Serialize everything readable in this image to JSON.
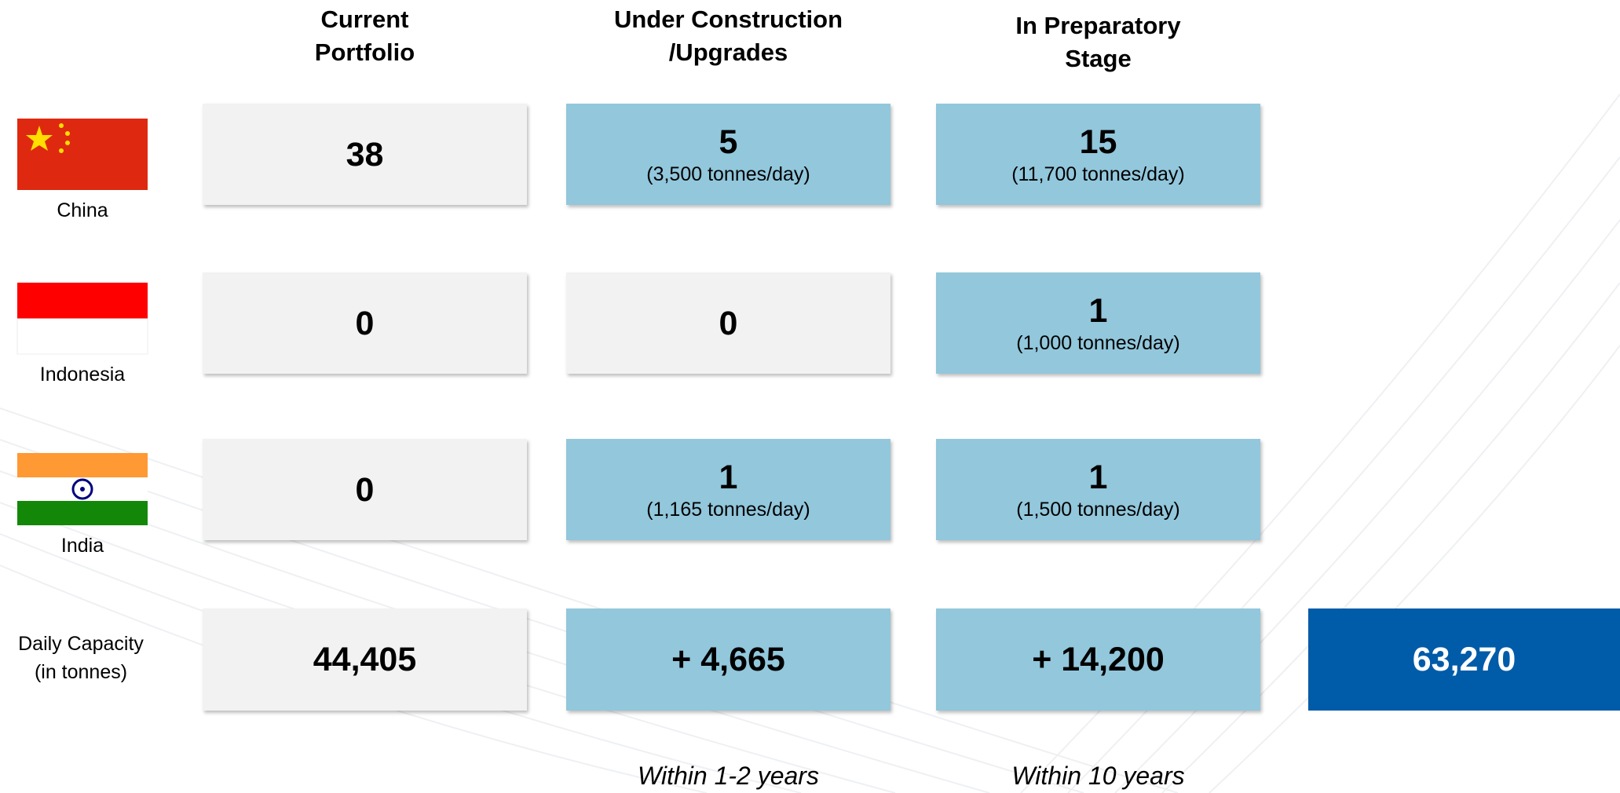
{
  "header": [
    [
      "Current",
      "Portfolio"
    ],
    [
      "Under Construction",
      "/Upgrades"
    ],
    [
      "In Preparatory",
      "Stage"
    ]
  ],
  "rows": [
    {
      "country": "China",
      "cells": [
        {
          "value": "38",
          "color": "#f2f2f2"
        },
        {
          "value": "5",
          "detail": "(3,500 tonnes/day)",
          "color": "#92c7dc"
        },
        {
          "value": "15",
          "detail": "(11,700 tonnes/day)",
          "color": "#92c7dc"
        }
      ]
    },
    {
      "country": "Indonesia",
      "cells": [
        {
          "value": "0",
          "color": "#f2f2f2"
        },
        {
          "value": "0",
          "color": "#f2f2f2"
        },
        {
          "value": "1",
          "detail": "(1,000 tonnes/day)",
          "color": "#92c7dc"
        }
      ]
    },
    {
      "country": "India",
      "cells": [
        {
          "value": "0",
          "color": "#f2f2f2"
        },
        {
          "value": "1",
          "detail": "(1,165 tonnes/day)",
          "color": "#92c7dc"
        },
        {
          "value": "1",
          "detail": "(1,500 tonnes/day)",
          "color": "#92c7dc"
        }
      ]
    }
  ],
  "capacity": {
    "label": [
      "Daily Capacity",
      "(in tonnes)"
    ],
    "cells": [
      {
        "value": "44,405",
        "color": "#f2f2f2"
      },
      {
        "value": "+ 4,665",
        "color": "#92c7dc"
      },
      {
        "value": "+ 14,200",
        "color": "#92c7dc"
      }
    ],
    "total": {
      "value": "63,270",
      "color": "#005ba8"
    }
  },
  "timeframes": [
    "Within 1-2 years",
    "Within 10 years"
  ]
}
